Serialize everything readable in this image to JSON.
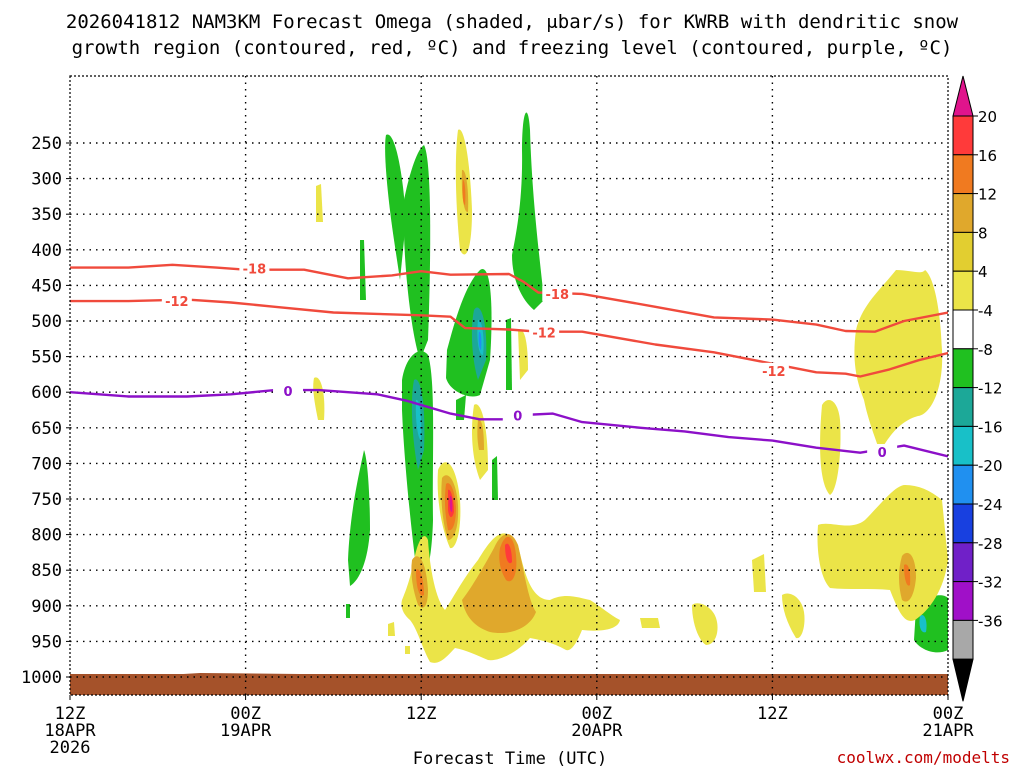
{
  "chart_data": {
    "type": "heatmap",
    "title_line1": "2026041812 NAM3KM Forecast Omega (shaded, μbar/s) for KWRB with dendritic snow",
    "title_line2": "growth region (contoured, red, ºC) and freezing level (contoured, purple, ºC)",
    "xlabel": "Forecast Time (UTC)",
    "credit": "coolwx.com/modelts",
    "x_ticks": [
      {
        "hour": 0,
        "lines": [
          "12Z",
          "18APR",
          "2026"
        ]
      },
      {
        "hour": 12,
        "lines": [
          "00Z",
          "19APR"
        ]
      },
      {
        "hour": 24,
        "lines": [
          "12Z"
        ]
      },
      {
        "hour": 36,
        "lines": [
          "00Z",
          "20APR"
        ]
      },
      {
        "hour": 48,
        "lines": [
          "12Z"
        ]
      },
      {
        "hour": 60,
        "lines": [
          "00Z",
          "21APR"
        ]
      }
    ],
    "xlim": [
      0,
      60
    ],
    "y_ticks": [
      "250",
      "300",
      "350",
      "400",
      "450",
      "500",
      "550",
      "600",
      "650",
      "700",
      "750",
      "800",
      "850",
      "900",
      "950",
      "1000"
    ],
    "ylim": [
      200,
      1010
    ],
    "colorbar_labels": [
      "20",
      "16",
      "12",
      "8",
      "4",
      "-4",
      "-8",
      "-12",
      "-16",
      "-20",
      "-24",
      "-28",
      "-32",
      "-36"
    ],
    "colorbar_colors": [
      "#ff3a3a",
      "#f07a20",
      "#e0a82c",
      "#e2ce30",
      "#ebe448",
      "#ffffff",
      "#20c020",
      "#1ca898",
      "#18c0c8",
      "#2090f0",
      "#1840e0",
      "#7020c8",
      "#a010c8",
      "#a8a8a8"
    ],
    "colors": {
      "red_contour": "#f04a3c",
      "purple_contour": "#8c10c8",
      "ground": "#a5522a"
    },
    "contours": [
      {
        "label": "-18",
        "color": "#f04a3c",
        "points": [
          [
            0,
            425
          ],
          [
            4,
            425
          ],
          [
            7,
            421
          ],
          [
            10,
            425
          ],
          [
            12,
            428
          ],
          [
            16,
            428
          ],
          [
            19,
            440
          ],
          [
            22,
            436
          ],
          [
            24,
            430
          ],
          [
            26,
            435
          ],
          [
            30,
            434
          ],
          [
            31,
            445
          ],
          [
            32,
            460
          ],
          [
            35,
            462
          ],
          [
            40,
            480
          ],
          [
            44,
            495
          ],
          [
            48,
            498
          ],
          [
            51,
            505
          ],
          [
            53,
            514
          ],
          [
            55,
            515
          ],
          [
            57,
            500
          ],
          [
            60,
            488
          ]
        ],
        "label_at": [
          [
            12.6,
            426
          ],
          [
            33.3,
            462
          ]
        ]
      },
      {
        "label": "-12",
        "color": "#f04a3c",
        "points": [
          [
            0,
            472
          ],
          [
            4,
            472
          ],
          [
            8,
            470
          ],
          [
            11,
            474
          ],
          [
            14,
            480
          ],
          [
            18,
            488
          ],
          [
            21,
            490
          ],
          [
            24,
            492
          ],
          [
            26,
            494
          ],
          [
            27,
            510
          ],
          [
            30,
            512
          ],
          [
            32,
            515
          ],
          [
            35,
            515
          ],
          [
            40,
            533
          ],
          [
            44,
            544
          ],
          [
            48,
            560
          ],
          [
            51,
            572
          ],
          [
            53,
            574
          ],
          [
            54,
            578
          ],
          [
            56,
            568
          ],
          [
            58,
            555
          ],
          [
            60,
            545
          ]
        ],
        "label_at": [
          [
            7.3,
            472
          ],
          [
            32.4,
            516
          ],
          [
            48.1,
            570
          ]
        ]
      },
      {
        "label": "0",
        "color": "#8c10c8",
        "points": [
          [
            0,
            600
          ],
          [
            4,
            606
          ],
          [
            8,
            606
          ],
          [
            11,
            603
          ],
          [
            14,
            597
          ],
          [
            17,
            597
          ],
          [
            21,
            603
          ],
          [
            23,
            612
          ],
          [
            26,
            630
          ],
          [
            28,
            638
          ],
          [
            30,
            638
          ],
          [
            31,
            632
          ],
          [
            33,
            630
          ],
          [
            35,
            642
          ],
          [
            39,
            650
          ],
          [
            42,
            655
          ],
          [
            45,
            663
          ],
          [
            48,
            668
          ],
          [
            51,
            678
          ],
          [
            54,
            685
          ],
          [
            57,
            675
          ],
          [
            60,
            690
          ]
        ],
        "label_at": [
          [
            14.9,
            598
          ],
          [
            30.6,
            633
          ],
          [
            55.5,
            684
          ]
        ]
      }
    ]
  }
}
